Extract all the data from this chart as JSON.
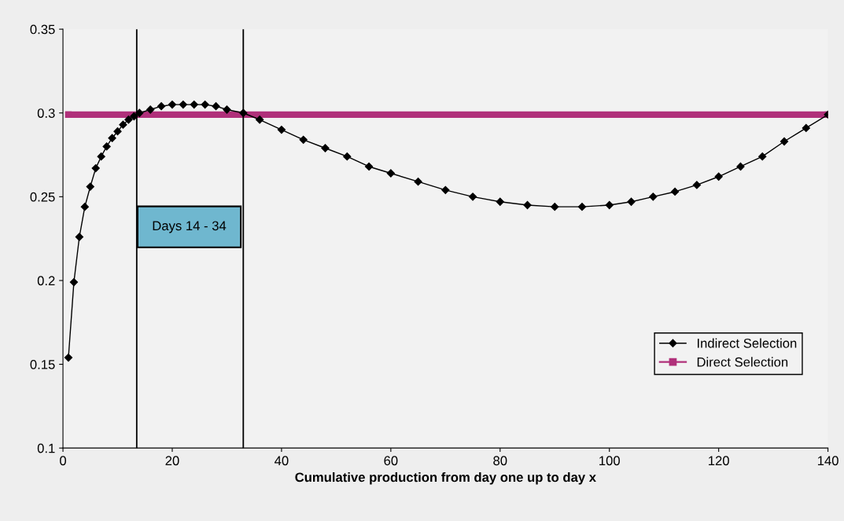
{
  "chart_data": {
    "type": "line",
    "xlabel": "Cumulative production from day one up to day x",
    "xlim": [
      0,
      140
    ],
    "xticks": [
      0,
      20,
      40,
      60,
      80,
      100,
      120,
      140
    ],
    "ylim": [
      0.1,
      0.35
    ],
    "yticks": [
      0.1,
      0.15,
      0.2,
      0.25,
      0.3,
      0.35
    ],
    "grid": false,
    "legend": "bottom right",
    "series": [
      {
        "name": "Indirect Selection",
        "color": "#000000",
        "marker": "diamond",
        "x": [
          1,
          2,
          3,
          4,
          5,
          6,
          7,
          8,
          9,
          10,
          11,
          12,
          13,
          14,
          16,
          18,
          20,
          22,
          24,
          26,
          28,
          30,
          33,
          36,
          40,
          44,
          48,
          52,
          56,
          60,
          65,
          70,
          75,
          80,
          85,
          90,
          95,
          100,
          104,
          108,
          112,
          116,
          120,
          124,
          128,
          132,
          136,
          140
        ],
        "values": [
          0.154,
          0.199,
          0.226,
          0.244,
          0.256,
          0.267,
          0.274,
          0.28,
          0.285,
          0.289,
          0.293,
          0.296,
          0.298,
          0.3,
          0.302,
          0.304,
          0.305,
          0.305,
          0.305,
          0.305,
          0.304,
          0.302,
          0.3,
          0.296,
          0.29,
          0.284,
          0.279,
          0.274,
          0.268,
          0.264,
          0.259,
          0.254,
          0.25,
          0.247,
          0.245,
          0.244,
          0.244,
          0.245,
          0.247,
          0.25,
          0.253,
          0.257,
          0.262,
          0.268,
          0.274,
          0.283,
          0.291,
          0.299
        ]
      },
      {
        "name": "Direct Selection",
        "color": "#b0307a",
        "marker": "square",
        "x": [
          1,
          140
        ],
        "values": [
          0.299,
          0.299
        ]
      }
    ],
    "ref_lines": [
      {
        "axis": "x",
        "value": 13.5,
        "color": "#000000"
      },
      {
        "axis": "x",
        "value": 33,
        "color": "#000000"
      }
    ],
    "annotations": [
      "Days 14 - 34"
    ]
  }
}
